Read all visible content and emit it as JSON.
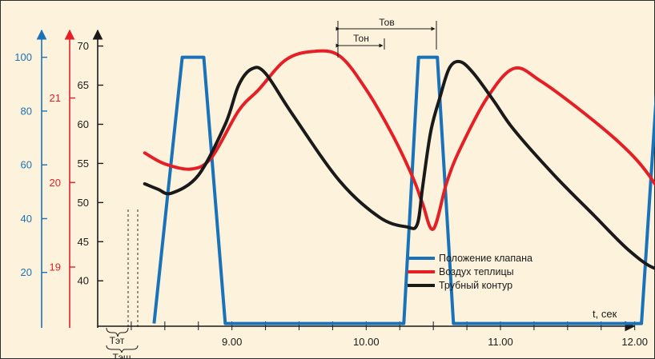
{
  "chart_data": {
    "type": "line",
    "title": "",
    "xlabel": "t, сек",
    "x_ticks": [
      {
        "label": "9.00",
        "value": 9.0
      },
      {
        "label": "10.00",
        "value": 10.0
      },
      {
        "label": "11.00",
        "value": 11.0
      },
      {
        "label": "12.00",
        "value": 12.0
      }
    ],
    "x_range": [
      8.0,
      12.6
    ],
    "axes": [
      {
        "name": "blue",
        "color": "#1a73b8",
        "range": [
          0,
          110
        ],
        "ticks": [
          "20",
          "40",
          "60",
          "80",
          "100"
        ],
        "tick_values": [
          20,
          40,
          60,
          80,
          100
        ]
      },
      {
        "name": "red",
        "color": "#e41f26",
        "range": [
          18.3,
          21.8
        ],
        "ticks": [
          "19",
          "20",
          "21"
        ],
        "tick_values": [
          19,
          20,
          21
        ]
      },
      {
        "name": "black",
        "color": "#1a1a1a",
        "range": [
          34.2,
          72
        ],
        "ticks": [
          "40",
          "45",
          "50",
          "55",
          "60",
          "65",
          "70"
        ],
        "tick_values": [
          40,
          45,
          50,
          55,
          60,
          65,
          70
        ]
      }
    ],
    "series": [
      {
        "name": "Положение клапана",
        "color": "#1a73b8",
        "axis": "blue",
        "points": [
          [
            8.42,
            1
          ],
          [
            8.63,
            100
          ],
          [
            8.79,
            100
          ],
          [
            8.95,
            1
          ],
          [
            10.28,
            1
          ],
          [
            10.39,
            100
          ],
          [
            10.53,
            100
          ],
          [
            10.65,
            1
          ],
          [
            12.05,
            1
          ],
          [
            12.18,
            100
          ],
          [
            12.45,
            100
          ]
        ]
      },
      {
        "name": "Воздух теплицы",
        "color": "#e41f26",
        "axis": "red",
        "points": [
          [
            8.35,
            20.35
          ],
          [
            8.5,
            20.22
          ],
          [
            8.7,
            20.16
          ],
          [
            8.85,
            20.3
          ],
          [
            9.05,
            20.85
          ],
          [
            9.2,
            21.1
          ],
          [
            9.4,
            21.45
          ],
          [
            9.6,
            21.55
          ],
          [
            9.8,
            21.5
          ],
          [
            10.0,
            21.1
          ],
          [
            10.2,
            20.55
          ],
          [
            10.35,
            20.05
          ],
          [
            10.42,
            19.75
          ],
          [
            10.5,
            19.45
          ],
          [
            10.6,
            20.0
          ],
          [
            10.7,
            20.4
          ],
          [
            10.9,
            21.0
          ],
          [
            11.1,
            21.35
          ],
          [
            11.3,
            21.2
          ],
          [
            11.6,
            20.85
          ],
          [
            11.9,
            20.45
          ],
          [
            12.1,
            20.1
          ],
          [
            12.3,
            19.6
          ],
          [
            12.5,
            19.1
          ]
        ]
      },
      {
        "name": "Трубный контур",
        "color": "#1a1a1a",
        "axis": "black",
        "points": [
          [
            8.35,
            52.4
          ],
          [
            8.45,
            51.7
          ],
          [
            8.55,
            51.2
          ],
          [
            8.75,
            53.5
          ],
          [
            8.95,
            60
          ],
          [
            9.05,
            65
          ],
          [
            9.15,
            67.1
          ],
          [
            9.25,
            66.5
          ],
          [
            9.45,
            61.3
          ],
          [
            9.8,
            52.8
          ],
          [
            10.1,
            48.1
          ],
          [
            10.3,
            46.9
          ],
          [
            10.38,
            47.2
          ],
          [
            10.42,
            52
          ],
          [
            10.48,
            59
          ],
          [
            10.55,
            63.5
          ],
          [
            10.62,
            67.2
          ],
          [
            10.7,
            68
          ],
          [
            10.8,
            66.5
          ],
          [
            10.95,
            63
          ],
          [
            11.1,
            59.3
          ],
          [
            11.4,
            53.5
          ],
          [
            11.7,
            48.3
          ],
          [
            11.95,
            44
          ],
          [
            12.15,
            41.6
          ],
          [
            12.3,
            42
          ],
          [
            12.45,
            45.6
          ]
        ]
      }
    ],
    "annotations": {
      "t_ov": "Тов",
      "t_on": "Тон",
      "t_et": "Тэт",
      "t_esh": "Тэш"
    },
    "legend_position": "bottom-right",
    "grid": false
  }
}
